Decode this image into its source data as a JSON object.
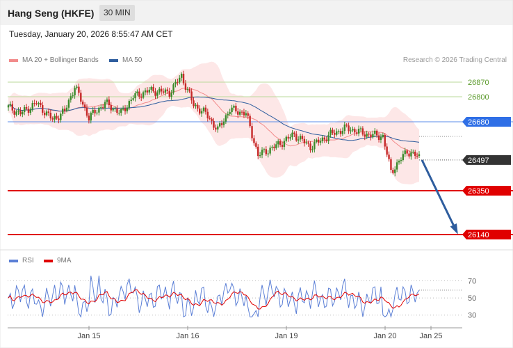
{
  "header": {
    "title": "Hang Seng (HKFE)",
    "interval": "30 MIN"
  },
  "timestamp": "Tuesday, January 20, 2026 8:55:47 AM CET",
  "legend": {
    "ma20": {
      "label": "MA 20 + Bollinger Bands",
      "color": "#f28b8b"
    },
    "ma50": {
      "label": "MA 50",
      "color": "#2e5d9e"
    }
  },
  "credit": "Research © 2026 Trading Central",
  "rsi_legend": {
    "rsi": {
      "label": "RSI",
      "color": "#5b7fd6"
    },
    "ma9": {
      "label": "9MA",
      "color": "#e00000"
    }
  },
  "chart_data": [
    {
      "type": "candlestick",
      "ylim": [
        26080,
        26930
      ],
      "x_ticks": [
        "Jan 15",
        "Jan 16",
        "Jan 19",
        "Jan 20",
        "Jan 25"
      ],
      "levels": [
        {
          "label": "26870",
          "value": 26870,
          "color": "#5a9a2a",
          "style": "resistance-thin"
        },
        {
          "label": "26800",
          "value": 26800,
          "color": "#5a9a2a",
          "style": "resistance-thin"
        },
        {
          "label": "26680",
          "value": 26680,
          "color": "#2f6fe6",
          "style": "pivot"
        },
        {
          "label": "26497",
          "value": 26497,
          "color": "#333333",
          "style": "last-price"
        },
        {
          "label": "26350",
          "value": 26350,
          "color": "#e00000",
          "style": "support"
        },
        {
          "label": "26140",
          "value": 26140,
          "color": "#e00000",
          "style": "support"
        }
      ],
      "projection": {
        "from": 26497,
        "to": 26140,
        "color": "#2e5d9e"
      }
    },
    {
      "type": "line",
      "ylim": [
        20,
        85
      ],
      "y_ticks": [
        "70",
        "50",
        "30"
      ],
      "series": [
        {
          "name": "RSI",
          "color": "#5b7fd6"
        },
        {
          "name": "9MA",
          "color": "#e00000"
        }
      ]
    }
  ]
}
